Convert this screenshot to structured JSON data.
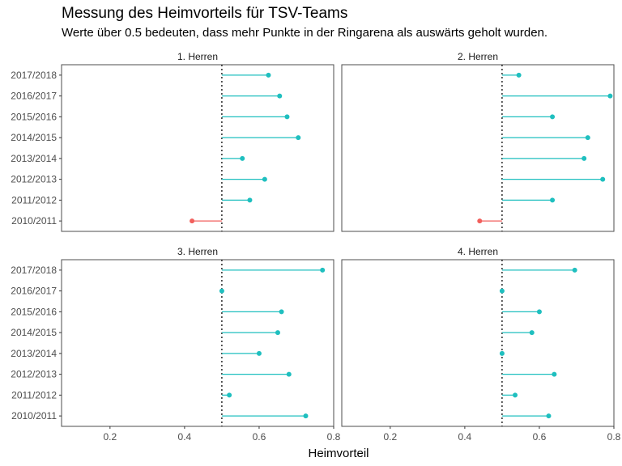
{
  "title": "Messung des Heimvorteils für TSV-Teams",
  "subtitle": "Werte über 0.5 bedeuten, dass mehr Punkte in der Ringarena als auswärts geholt wurden.",
  "chart_data": {
    "type": "lollipop",
    "title": "Messung des Heimvorteils für TSV-Teams",
    "subtitle": "Werte über 0.5 bedeuten, dass mehr Punkte in der Ringarena als auswärts geholt wurden.",
    "xlabel": "Heimvorteil",
    "ylabel": "",
    "xlim": [
      0.07,
      0.8
    ],
    "xticks": [
      0.2,
      0.4,
      0.6,
      0.8
    ],
    "xtick_labels": [
      "0.2",
      "0.4",
      "0.6",
      "0.8"
    ],
    "reference_line": 0.5,
    "seasons": [
      "2010/2011",
      "2011/2012",
      "2012/2013",
      "2013/2014",
      "2014/2015",
      "2015/2016",
      "2016/2017",
      "2017/2018"
    ],
    "colors": {
      "above": "#1fbfbf",
      "below": "#f25f5c",
      "panel_border": "#4d4d4d",
      "reference": "#1a1a1a"
    },
    "panels": [
      {
        "name": "1. Herren",
        "values": [
          0.42,
          0.575,
          0.615,
          0.555,
          0.705,
          0.675,
          0.655,
          0.625
        ]
      },
      {
        "name": "2. Herren",
        "values": [
          0.44,
          0.635,
          0.77,
          0.72,
          0.73,
          0.635,
          0.79,
          0.545
        ]
      },
      {
        "name": "3. Herren",
        "values": [
          0.725,
          0.52,
          0.68,
          0.6,
          0.65,
          0.66,
          0.5,
          0.77
        ]
      },
      {
        "name": "4. Herren",
        "values": [
          0.625,
          0.535,
          0.64,
          0.5,
          0.58,
          0.6,
          0.5,
          0.695
        ]
      }
    ]
  }
}
